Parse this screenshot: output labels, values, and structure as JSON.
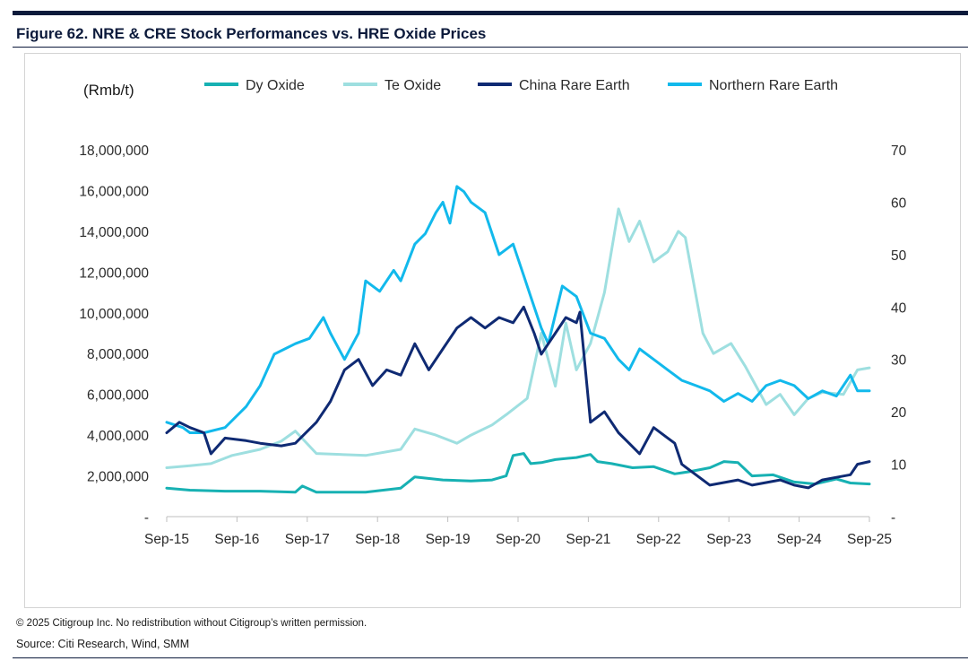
{
  "figure": {
    "title": "Figure 62. NRE & CRE Stock Performances vs. HRE Oxide Prices",
    "copyright": "© 2025 Citigroup Inc. No redistribution without Citigroup’s written permission.",
    "source": "Source: Citi Research, Wind, SMM"
  },
  "colors": {
    "dy_oxide": "#17b1b3",
    "te_oxide": "#9edfe0",
    "china_rare_earth": "#0f2a73",
    "northern_rare_earth": "#12b9ec"
  },
  "chart_data": {
    "type": "line",
    "title": "NRE & CRE Stock Performances vs. HRE Oxide Prices",
    "ylabel": "(Rmb/t)",
    "ylim": [
      0,
      18000000
    ],
    "y2lim": [
      0,
      70
    ],
    "yticks": [
      "-",
      "2,000,000",
      "4,000,000",
      "6,000,000",
      "8,000,000",
      "10,000,000",
      "12,000,000",
      "14,000,000",
      "16,000,000",
      "18,000,000"
    ],
    "y2ticks": [
      "-",
      "10",
      "20",
      "30",
      "40",
      "50",
      "60",
      "70"
    ],
    "xlim": [
      2015.67,
      2025.67
    ],
    "xticks": [
      "Sep-15",
      "Sep-16",
      "Sep-17",
      "Sep-18",
      "Sep-19",
      "Sep-20",
      "Sep-21",
      "Sep-22",
      "Sep-23",
      "Sep-24",
      "Sep-25"
    ],
    "legend": [
      "Dy Oxide",
      "Te Oxide",
      "China Rare Earth",
      "Northern Rare Earth"
    ],
    "legend_position": "top",
    "series": [
      {
        "name": "Dy Oxide",
        "axis": "left",
        "x": [
          2015.67,
          2016.0,
          2016.5,
          2017.0,
          2017.5,
          2017.6,
          2017.8,
          2018.5,
          2019.0,
          2019.2,
          2019.6,
          2020.0,
          2020.3,
          2020.5,
          2020.6,
          2020.75,
          2020.85,
          2021.0,
          2021.2,
          2021.5,
          2021.7,
          2021.8,
          2022.0,
          2022.3,
          2022.6,
          2022.9,
          2023.1,
          2023.4,
          2023.6,
          2023.8,
          2024.0,
          2024.3,
          2024.6,
          2024.9,
          2025.2,
          2025.4,
          2025.67
        ],
        "y": [
          1400000,
          1300000,
          1250000,
          1250000,
          1200000,
          1500000,
          1200000,
          1200000,
          1400000,
          1950000,
          1800000,
          1750000,
          1800000,
          2000000,
          3000000,
          3100000,
          2600000,
          2650000,
          2800000,
          2900000,
          3050000,
          2700000,
          2600000,
          2400000,
          2450000,
          2100000,
          2200000,
          2400000,
          2700000,
          2650000,
          2000000,
          2050000,
          1700000,
          1600000,
          1850000,
          1650000,
          1600000
        ]
      },
      {
        "name": "Te Oxide",
        "axis": "left",
        "x": [
          2015.67,
          2016.0,
          2016.3,
          2016.6,
          2017.0,
          2017.3,
          2017.5,
          2017.8,
          2018.5,
          2019.0,
          2019.2,
          2019.5,
          2019.8,
          2020.0,
          2020.3,
          2020.5,
          2020.8,
          2021.0,
          2021.2,
          2021.35,
          2021.5,
          2021.7,
          2021.9,
          2022.1,
          2022.25,
          2022.4,
          2022.6,
          2022.8,
          2022.95,
          2023.05,
          2023.3,
          2023.45,
          2023.55,
          2023.7,
          2023.9,
          2024.2,
          2024.4,
          2024.6,
          2024.8,
          2025.0,
          2025.3,
          2025.5,
          2025.67
        ],
        "y": [
          2400000,
          2500000,
          2600000,
          3000000,
          3300000,
          3700000,
          4200000,
          3100000,
          3000000,
          3300000,
          4300000,
          4000000,
          3600000,
          4000000,
          4500000,
          5000000,
          5800000,
          9000000,
          6400000,
          9500000,
          7200000,
          8500000,
          11000000,
          15100000,
          13500000,
          14500000,
          12500000,
          13000000,
          14000000,
          13700000,
          9000000,
          8000000,
          8200000,
          8500000,
          7400000,
          5500000,
          6000000,
          5000000,
          5800000,
          6100000,
          6000000,
          7200000,
          7300000
        ]
      },
      {
        "name": "China Rare Earth",
        "axis": "right",
        "x": [
          2015.67,
          2015.85,
          2016.0,
          2016.2,
          2016.3,
          2016.5,
          2016.8,
          2017.0,
          2017.3,
          2017.5,
          2017.8,
          2018.0,
          2018.2,
          2018.4,
          2018.6,
          2018.8,
          2019.0,
          2019.2,
          2019.4,
          2019.6,
          2019.8,
          2020.0,
          2020.2,
          2020.4,
          2020.6,
          2020.75,
          2020.9,
          2021.0,
          2021.2,
          2021.35,
          2021.5,
          2021.55,
          2021.7,
          2021.9,
          2022.1,
          2022.25,
          2022.4,
          2022.6,
          2022.8,
          2022.9,
          2023.0,
          2023.2,
          2023.4,
          2023.6,
          2023.8,
          2024.0,
          2024.2,
          2024.4,
          2024.6,
          2024.8,
          2025.0,
          2025.2,
          2025.4,
          2025.5,
          2025.67
        ],
        "y": [
          16,
          18,
          17,
          16,
          12,
          15,
          14.5,
          14,
          13.5,
          14,
          18,
          22,
          28,
          30,
          25,
          28,
          27,
          33,
          28,
          32,
          36,
          38,
          36,
          38,
          37,
          40,
          35,
          31,
          35,
          38,
          37,
          39,
          18,
          20,
          16,
          14,
          12,
          17,
          15,
          14,
          10,
          8,
          6,
          6.5,
          7,
          6,
          6.5,
          7,
          6,
          5.5,
          7,
          7.5,
          8,
          10,
          10.5
        ]
      },
      {
        "name": "Northern Rare Earth",
        "axis": "right",
        "x": [
          2015.67,
          2015.9,
          2016.0,
          2016.2,
          2016.5,
          2016.8,
          2017.0,
          2017.2,
          2017.5,
          2017.7,
          2017.9,
          2018.0,
          2018.2,
          2018.4,
          2018.5,
          2018.7,
          2018.9,
          2019.0,
          2019.2,
          2019.35,
          2019.5,
          2019.6,
          2019.7,
          2019.8,
          2019.9,
          2020.0,
          2020.2,
          2020.4,
          2020.6,
          2020.75,
          2020.85,
          2021.0,
          2021.1,
          2021.3,
          2021.5,
          2021.7,
          2021.9,
          2022.1,
          2022.25,
          2022.4,
          2022.6,
          2022.8,
          2023.0,
          2023.2,
          2023.4,
          2023.6,
          2023.8,
          2024.0,
          2024.2,
          2024.4,
          2024.6,
          2024.8,
          2025.0,
          2025.2,
          2025.4,
          2025.5,
          2025.67
        ],
        "y": [
          18,
          17,
          16,
          16,
          17,
          21,
          25,
          31,
          33,
          34,
          38,
          35,
          30,
          35,
          45,
          43,
          47,
          45,
          52,
          54,
          58,
          60,
          56,
          63,
          62,
          60,
          58,
          50,
          52,
          46,
          42,
          36,
          33,
          44,
          42,
          35,
          34,
          30,
          28,
          32,
          30,
          28,
          26,
          25,
          24,
          22,
          23.5,
          22,
          25,
          26,
          25,
          22.5,
          24,
          23,
          27,
          24,
          24
        ]
      }
    ]
  }
}
